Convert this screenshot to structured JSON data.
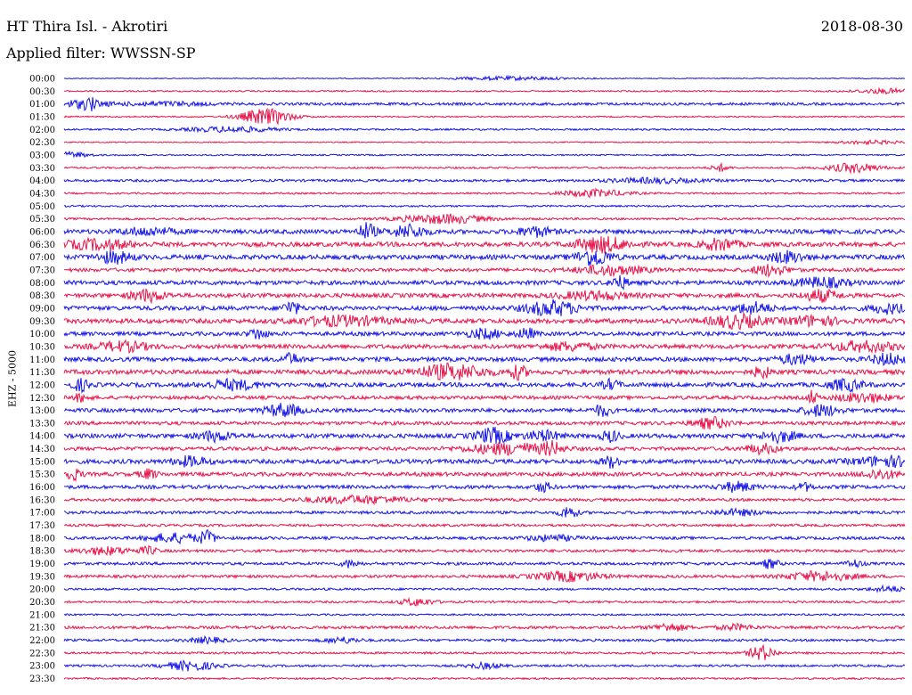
{
  "header": {
    "station": "HT Thira Isl. - Akrotiri",
    "date": "2018-08-30",
    "filter": "Applied filter: WWSSN-SP",
    "channel": "EHZ - 5000"
  },
  "chart_data": {
    "type": "line",
    "title": "HT Thira Isl. - Akrotiri",
    "subtitle": "Applied filter: WWSSN-SP",
    "ylabel": "EHZ - 5000",
    "xlabel": "",
    "grid": false,
    "row_labels": [
      "00:00",
      "00:30",
      "01:00",
      "01:30",
      "02:00",
      "02:30",
      "03:00",
      "03:30",
      "04:00",
      "04:30",
      "05:00",
      "05:30",
      "06:00",
      "06:30",
      "07:00",
      "07:30",
      "08:00",
      "08:30",
      "09:00",
      "09:30",
      "10:00",
      "10:30",
      "11:00",
      "11:30",
      "12:00",
      "12:30",
      "13:00",
      "13:30",
      "14:00",
      "14:30",
      "15:00",
      "15:30",
      "16:00",
      "16:30",
      "17:00",
      "17:30",
      "18:00",
      "18:30",
      "19:00",
      "19:30",
      "20:00",
      "20:30",
      "21:00",
      "21:30",
      "22:00",
      "22:30",
      "23:00",
      "23:30"
    ],
    "colors": [
      "#1414e6",
      "#e6144a"
    ],
    "noise_level": [
      0.5,
      0.8,
      1.5,
      0.8,
      1,
      0.6,
      0.8,
      1,
      1.4,
      1,
      1,
      1.2,
      2.4,
      2.6,
      2.6,
      2,
      2.4,
      2.4,
      2.4,
      2.6,
      2.2,
      2.4,
      2.4,
      2.6,
      2.4,
      2,
      2.2,
      2,
      2.4,
      2,
      2.4,
      2.2,
      2,
      1.6,
      1.6,
      1.4,
      1.6,
      1.6,
      1.6,
      1.6,
      1.2,
      1.2,
      1,
      1.6,
      1.4,
      1.2,
      1.2,
      1
    ],
    "events": [
      [
        {
          "x": 0.53,
          "a": 2,
          "w": 0.07
        }
      ],
      [
        {
          "x": 0.98,
          "a": 2.5,
          "w": 0.04
        }
      ],
      [
        {
          "x": 0.02,
          "a": 4,
          "w": 0.03
        },
        {
          "x": 0.03,
          "a": 6,
          "w": 0.005
        },
        {
          "x": 0.12,
          "a": 2,
          "w": 0.05
        }
      ],
      [
        {
          "x": 0.24,
          "a": 9,
          "w": 0.03
        }
      ],
      [
        {
          "x": 0.2,
          "a": 3,
          "w": 0.05
        }
      ],
      [
        {
          "x": 0.96,
          "a": 2,
          "w": 0.04
        }
      ],
      [
        {
          "x": 0.01,
          "a": 3,
          "w": 0.02
        }
      ],
      [
        {
          "x": 0.78,
          "a": 4,
          "w": 0.01
        },
        {
          "x": 0.94,
          "a": 5,
          "w": 0.03
        }
      ],
      [
        {
          "x": 0.7,
          "a": 2.5,
          "w": 0.05
        }
      ],
      [
        {
          "x": 0.63,
          "a": 4,
          "w": 0.04
        }
      ],
      [],
      [
        {
          "x": 0.45,
          "a": 5,
          "w": 0.05
        }
      ],
      [
        {
          "x": 0.1,
          "a": 4,
          "w": 0.03
        },
        {
          "x": 0.36,
          "a": 9,
          "w": 0.01
        },
        {
          "x": 0.41,
          "a": 7,
          "w": 0.02
        },
        {
          "x": 0.56,
          "a": 5,
          "w": 0.02
        }
      ],
      [
        {
          "x": 0.04,
          "a": 5,
          "w": 0.04
        },
        {
          "x": 0.64,
          "a": 8,
          "w": 0.03
        },
        {
          "x": 0.78,
          "a": 6,
          "w": 0.02
        }
      ],
      [
        {
          "x": 0.06,
          "a": 6,
          "w": 0.02
        },
        {
          "x": 0.63,
          "a": 9,
          "w": 0.02
        },
        {
          "x": 0.86,
          "a": 6,
          "w": 0.02
        }
      ],
      [
        {
          "x": 0.84,
          "a": 6,
          "w": 0.02
        },
        {
          "x": 0.65,
          "a": 5,
          "w": 0.04
        }
      ],
      [
        {
          "x": 0.66,
          "a": 7,
          "w": 0.01
        },
        {
          "x": 0.9,
          "a": 5,
          "w": 0.03
        }
      ],
      [
        {
          "x": 0.1,
          "a": 6,
          "w": 0.02
        },
        {
          "x": 0.9,
          "a": 6,
          "w": 0.02
        },
        {
          "x": 0.63,
          "a": 4,
          "w": 0.04
        }
      ],
      [
        {
          "x": 0.27,
          "a": 7,
          "w": 0.01
        },
        {
          "x": 0.58,
          "a": 8,
          "w": 0.03
        },
        {
          "x": 0.82,
          "a": 6,
          "w": 0.02
        },
        {
          "x": 0.98,
          "a": 5,
          "w": 0.02
        }
      ],
      [
        {
          "x": 0.33,
          "a": 5,
          "w": 0.05
        },
        {
          "x": 0.8,
          "a": 7,
          "w": 0.03
        },
        {
          "x": 0.89,
          "a": 5,
          "w": 0.03
        }
      ],
      [
        {
          "x": 0.23,
          "a": 6,
          "w": 0.01
        },
        {
          "x": 0.5,
          "a": 5,
          "w": 0.02
        },
        {
          "x": 0.55,
          "a": 6,
          "w": 0.01
        }
      ],
      [
        {
          "x": 0.07,
          "a": 5,
          "w": 0.03
        },
        {
          "x": 0.6,
          "a": 4,
          "w": 0.03
        },
        {
          "x": 0.95,
          "a": 5,
          "w": 0.04
        }
      ],
      [
        {
          "x": 0.27,
          "a": 6,
          "w": 0.01
        },
        {
          "x": 0.87,
          "a": 5,
          "w": 0.02
        },
        {
          "x": 0.98,
          "a": 6,
          "w": 0.02
        }
      ],
      [
        {
          "x": 0.46,
          "a": 8,
          "w": 0.04
        },
        {
          "x": 0.54,
          "a": 7,
          "w": 0.01
        },
        {
          "x": 0.83,
          "a": 6,
          "w": 0.01
        }
      ],
      [
        {
          "x": 0.02,
          "a": 6,
          "w": 0.01
        },
        {
          "x": 0.2,
          "a": 5,
          "w": 0.03
        },
        {
          "x": 0.65,
          "a": 5,
          "w": 0.01
        },
        {
          "x": 0.93,
          "a": 6,
          "w": 0.02
        }
      ],
      [
        {
          "x": 0.02,
          "a": 4,
          "w": 0.01
        },
        {
          "x": 0.89,
          "a": 8,
          "w": 0.005
        },
        {
          "x": 0.95,
          "a": 5,
          "w": 0.03
        }
      ],
      [
        {
          "x": 0.26,
          "a": 7,
          "w": 0.02
        },
        {
          "x": 0.64,
          "a": 6,
          "w": 0.01
        },
        {
          "x": 0.9,
          "a": 6,
          "w": 0.02
        }
      ],
      [
        {
          "x": 0.77,
          "a": 6,
          "w": 0.02
        }
      ],
      [
        {
          "x": 0.18,
          "a": 5,
          "w": 0.02
        },
        {
          "x": 0.51,
          "a": 8,
          "w": 0.02
        },
        {
          "x": 0.57,
          "a": 5,
          "w": 0.02
        },
        {
          "x": 0.65,
          "a": 6,
          "w": 0.01
        },
        {
          "x": 0.85,
          "a": 6,
          "w": 0.02
        }
      ],
      [
        {
          "x": 0.53,
          "a": 6,
          "w": 0.05
        },
        {
          "x": 0.58,
          "a": 6,
          "w": 0.01
        },
        {
          "x": 0.83,
          "a": 5,
          "w": 0.02
        }
      ],
      [
        {
          "x": 0.15,
          "a": 5,
          "w": 0.02
        },
        {
          "x": 0.65,
          "a": 6,
          "w": 0.01
        },
        {
          "x": 0.98,
          "a": 5,
          "w": 0.04
        }
      ],
      [
        {
          "x": 0.01,
          "a": 6,
          "w": 0.01
        },
        {
          "x": 0.1,
          "a": 5,
          "w": 0.01
        },
        {
          "x": 0.97,
          "a": 5,
          "w": 0.02
        }
      ],
      [
        {
          "x": 0.57,
          "a": 5,
          "w": 0.01
        },
        {
          "x": 0.8,
          "a": 5,
          "w": 0.02
        },
        {
          "x": 0.88,
          "a": 4,
          "w": 0.01
        }
      ],
      [
        {
          "x": 0.35,
          "a": 4,
          "w": 0.06
        }
      ],
      [
        {
          "x": 0.6,
          "a": 7,
          "w": 0.01
        },
        {
          "x": 0.8,
          "a": 3,
          "w": 0.03
        }
      ],
      [],
      [
        {
          "x": 0.13,
          "a": 5,
          "w": 0.03
        },
        {
          "x": 0.17,
          "a": 7,
          "w": 0.01
        },
        {
          "x": 0.58,
          "a": 3,
          "w": 0.03
        }
      ],
      [
        {
          "x": 0.05,
          "a": 4,
          "w": 0.03
        },
        {
          "x": 0.1,
          "a": 4,
          "w": 0.01
        }
      ],
      [
        {
          "x": 0.34,
          "a": 4,
          "w": 0.01
        },
        {
          "x": 0.84,
          "a": 5,
          "w": 0.01
        },
        {
          "x": 0.94,
          "a": 4,
          "w": 0.01
        }
      ],
      [
        {
          "x": 0.6,
          "a": 5,
          "w": 0.04
        },
        {
          "x": 0.9,
          "a": 5,
          "w": 0.04
        }
      ],
      [
        {
          "x": 0.98,
          "a": 3,
          "w": 0.02
        }
      ],
      [
        {
          "x": 0.42,
          "a": 4,
          "w": 0.02
        }
      ],
      [],
      [
        {
          "x": 0.72,
          "a": 4,
          "w": 0.02
        },
        {
          "x": 0.8,
          "a": 3,
          "w": 0.02
        }
      ],
      [
        {
          "x": 0.17,
          "a": 3,
          "w": 0.02
        },
        {
          "x": 0.33,
          "a": 3,
          "w": 0.02
        }
      ],
      [
        {
          "x": 0.83,
          "a": 8,
          "w": 0.015
        }
      ],
      [
        {
          "x": 0.15,
          "a": 5,
          "w": 0.03
        },
        {
          "x": 0.5,
          "a": 3,
          "w": 0.02
        }
      ],
      []
    ]
  }
}
